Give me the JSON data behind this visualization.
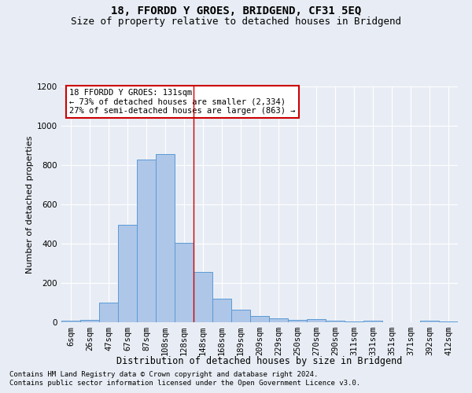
{
  "title": "18, FFORDD Y GROES, BRIDGEND, CF31 5EQ",
  "subtitle": "Size of property relative to detached houses in Bridgend",
  "xlabel": "Distribution of detached houses by size in Bridgend",
  "ylabel": "Number of detached properties",
  "categories": [
    "6sqm",
    "26sqm",
    "47sqm",
    "67sqm",
    "87sqm",
    "108sqm",
    "128sqm",
    "148sqm",
    "168sqm",
    "189sqm",
    "209sqm",
    "229sqm",
    "250sqm",
    "270sqm",
    "290sqm",
    "311sqm",
    "331sqm",
    "351sqm",
    "371sqm",
    "392sqm",
    "412sqm"
  ],
  "values": [
    8,
    12,
    100,
    495,
    830,
    855,
    405,
    255,
    120,
    65,
    32,
    22,
    13,
    15,
    8,
    5,
    8,
    2,
    0,
    9,
    4
  ],
  "bar_color": "#aec6e8",
  "bar_edge_color": "#5b9bd5",
  "vline_x": 6.5,
  "vline_color": "#cc0000",
  "annotation_text": "18 FFORDD Y GROES: 131sqm\n← 73% of detached houses are smaller (2,334)\n27% of semi-detached houses are larger (863) →",
  "annotation_box_color": "white",
  "annotation_box_edge_color": "#cc0000",
  "ylim": [
    0,
    1200
  ],
  "yticks": [
    0,
    200,
    400,
    600,
    800,
    1000,
    1200
  ],
  "footer1": "Contains HM Land Registry data © Crown copyright and database right 2024.",
  "footer2": "Contains public sector information licensed under the Open Government Licence v3.0.",
  "background_color": "#e8edf5",
  "plot_bg_color": "#e8edf5",
  "title_fontsize": 10,
  "subtitle_fontsize": 9,
  "xlabel_fontsize": 8.5,
  "ylabel_fontsize": 8,
  "tick_fontsize": 7.5,
  "footer_fontsize": 6.5,
  "annot_fontsize": 7.5
}
